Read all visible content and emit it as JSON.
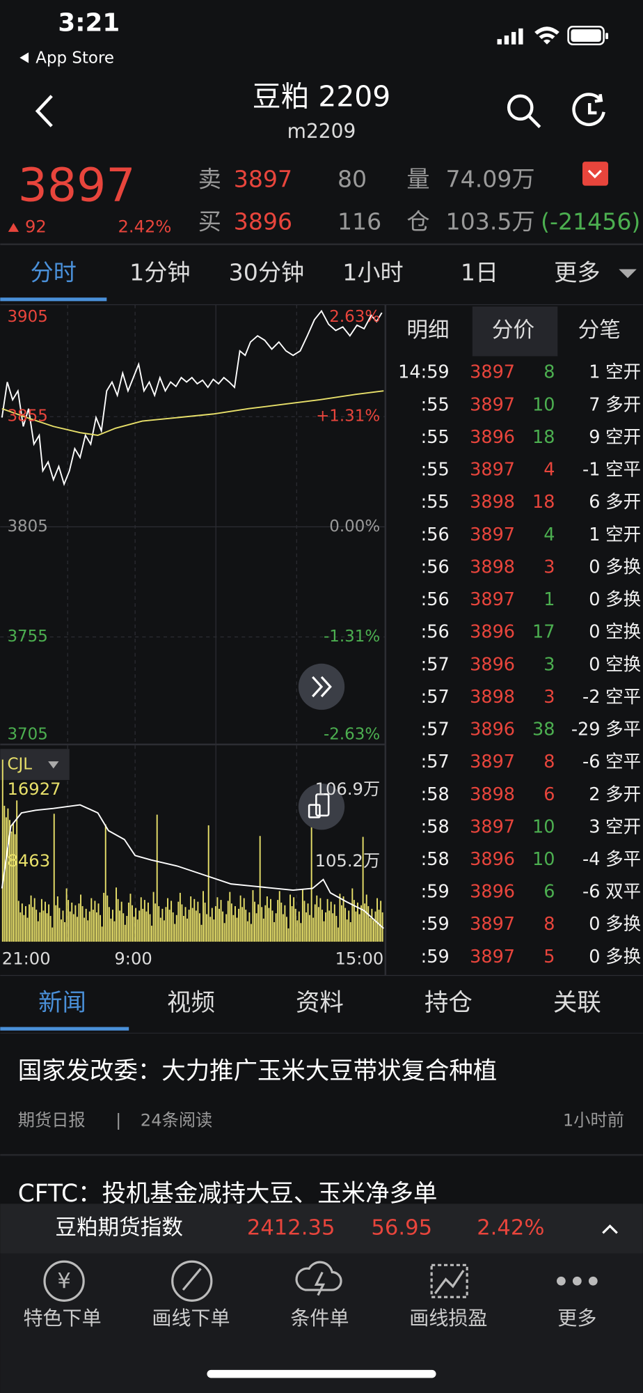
{
  "status": {
    "time": "3:21",
    "back": "App Store"
  },
  "header": {
    "title": "豆粕 2209",
    "code": "m2209"
  },
  "quote": {
    "price": "3897",
    "change": "92",
    "pct": "2.42%",
    "sell_label": "卖",
    "sell_price": "3897",
    "sell_vol": "80",
    "buy_label": "买",
    "buy_price": "3896",
    "buy_vol": "116",
    "volume_label": "量",
    "volume": "74.09万",
    "oi_label": "仓",
    "oi": "103.5万",
    "oi_change": "(-21456)"
  },
  "tabs": [
    "分时",
    "1分钟",
    "30分钟",
    "1小时",
    "1日",
    "更多"
  ],
  "chart": {
    "price_labels": [
      {
        "text": "3905",
        "color": "#e8453c"
      },
      {
        "text": "3855",
        "color": "#e8453c"
      },
      {
        "text": "3805",
        "color": "#9a9a9a"
      },
      {
        "text": "3755",
        "color": "#4caf50"
      },
      {
        "text": "3705",
        "color": "#4caf50"
      }
    ],
    "pct_labels": [
      {
        "text": "2.63%",
        "color": "#e8453c"
      },
      {
        "text": "+1.31%",
        "color": "#e8453c"
      },
      {
        "text": "0.00%",
        "color": "#9a9a9a"
      },
      {
        "text": "-1.31%",
        "color": "#4caf50"
      },
      {
        "text": "-2.63%",
        "color": "#4caf50"
      }
    ],
    "indicator": "CJL",
    "vol_labels": [
      "16927",
      "8463"
    ],
    "oi_labels": [
      "106.9万",
      "105.2万"
    ],
    "time_labels": [
      "21:00",
      "9:00",
      "15:00"
    ]
  },
  "detail_tabs": [
    "明细",
    "分价",
    "分笔"
  ],
  "trades": [
    {
      "time": "14:59",
      "price": "3897",
      "vol": "8",
      "change": "1",
      "type": "空开",
      "vol_color": "#4caf50"
    },
    {
      "time": ":55",
      "price": "3897",
      "vol": "10",
      "change": "7",
      "type": "多开",
      "vol_color": "#4caf50"
    },
    {
      "time": ":55",
      "price": "3896",
      "vol": "18",
      "change": "9",
      "type": "空开",
      "vol_color": "#4caf50"
    },
    {
      "time": ":55",
      "price": "3897",
      "vol": "4",
      "change": "-1",
      "type": "空平",
      "vol_color": "#e8453c"
    },
    {
      "time": ":55",
      "price": "3898",
      "vol": "18",
      "change": "6",
      "type": "多开",
      "vol_color": "#e8453c"
    },
    {
      "time": ":56",
      "price": "3897",
      "vol": "4",
      "change": "1",
      "type": "空开",
      "vol_color": "#4caf50"
    },
    {
      "time": ":56",
      "price": "3898",
      "vol": "3",
      "change": "0",
      "type": "多换",
      "vol_color": "#e8453c"
    },
    {
      "time": ":56",
      "price": "3897",
      "vol": "1",
      "change": "0",
      "type": "多换",
      "vol_color": "#4caf50"
    },
    {
      "time": ":56",
      "price": "3896",
      "vol": "17",
      "change": "0",
      "type": "空换",
      "vol_color": "#4caf50"
    },
    {
      "time": ":57",
      "price": "3896",
      "vol": "3",
      "change": "0",
      "type": "空换",
      "vol_color": "#4caf50"
    },
    {
      "time": ":57",
      "price": "3898",
      "vol": "3",
      "change": "-2",
      "type": "空平",
      "vol_color": "#e8453c"
    },
    {
      "time": ":57",
      "price": "3896",
      "vol": "38",
      "change": "-29",
      "type": "多平",
      "vol_color": "#4caf50"
    },
    {
      "time": ":57",
      "price": "3897",
      "vol": "8",
      "change": "-6",
      "type": "空平",
      "vol_color": "#e8453c"
    },
    {
      "time": ":58",
      "price": "3898",
      "vol": "6",
      "change": "2",
      "type": "多开",
      "vol_color": "#e8453c"
    },
    {
      "time": ":58",
      "price": "3897",
      "vol": "10",
      "change": "3",
      "type": "空开",
      "vol_color": "#4caf50"
    },
    {
      "time": ":58",
      "price": "3896",
      "vol": "10",
      "change": "-4",
      "type": "多平",
      "vol_color": "#4caf50"
    },
    {
      "time": ":59",
      "price": "3896",
      "vol": "6",
      "change": "-6",
      "type": "双平",
      "vol_color": "#4caf50"
    },
    {
      "time": ":59",
      "price": "3897",
      "vol": "8",
      "change": "0",
      "type": "多换",
      "vol_color": "#e8453c"
    },
    {
      "time": ":59",
      "price": "3897",
      "vol": "5",
      "change": "0",
      "type": "多换",
      "vol_color": "#e8453c"
    }
  ],
  "news_tabs": [
    "新闻",
    "视频",
    "资料",
    "持仓",
    "关联"
  ],
  "news": [
    {
      "title": "国家发改委：大力推广玉米大豆带状复合种植",
      "source": "期货日报",
      "separator": "|",
      "reads": "24条阅读",
      "time": "1小时前"
    },
    {
      "title": "CFTC：投机基金减持大豆、玉米净多单"
    }
  ],
  "index_bar": {
    "name": "豆粕期货指数",
    "value": "2412.35",
    "change": "56.95",
    "pct": "2.42%"
  },
  "toolbar": [
    "特色下单",
    "画线下单",
    "条件单",
    "画线损盈",
    "更多"
  ]
}
